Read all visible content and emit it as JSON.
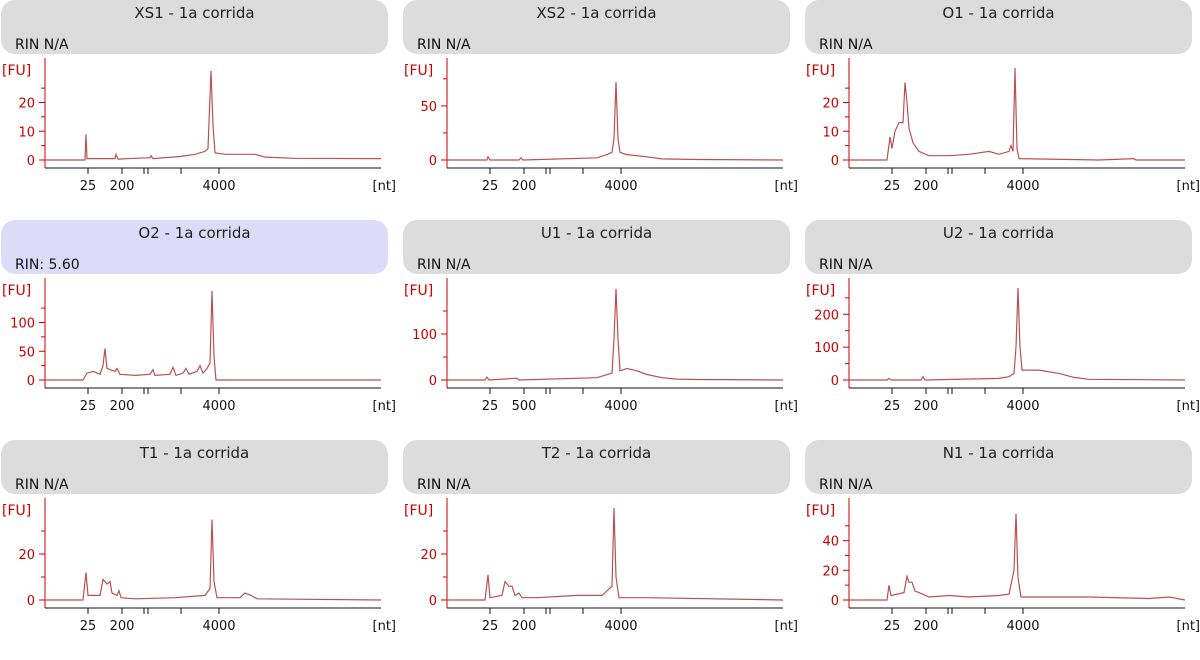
{
  "chart_data": [
    {
      "type": "line",
      "title": "XS1 - 1a corrida",
      "rin": "RIN N/A",
      "ylabel": "[FU]",
      "xlabel": "[nt]",
      "y_ticks": [
        "0",
        "10",
        "20"
      ],
      "ymax": 32,
      "x_ticks": [
        "25",
        "200",
        "4000"
      ],
      "highlight": false,
      "points": [
        [
          0,
          0
        ],
        [
          40,
          0
        ],
        [
          41,
          9
        ],
        [
          42,
          0.5
        ],
        [
          70,
          0.5
        ],
        [
          71,
          2
        ],
        [
          73,
          0.3
        ],
        [
          105,
          0.8
        ],
        [
          106,
          1.5
        ],
        [
          108,
          0.5
        ],
        [
          135,
          1.2
        ],
        [
          150,
          2
        ],
        [
          160,
          3
        ],
        [
          163,
          4
        ],
        [
          166,
          31
        ],
        [
          168,
          12
        ],
        [
          170,
          2.5
        ],
        [
          180,
          2
        ],
        [
          210,
          2
        ],
        [
          220,
          1
        ],
        [
          250,
          0.6
        ],
        [
          336,
          0.5
        ]
      ]
    },
    {
      "type": "line",
      "title": "XS2 - 1a corrida",
      "rin": "RIN N/A",
      "ylabel": "[FU]",
      "xlabel": "[nt]",
      "y_ticks": [
        "0",
        "50"
      ],
      "ymax": 85,
      "x_ticks": [
        "25",
        "200",
        "4000"
      ],
      "highlight": false,
      "points": [
        [
          0,
          0
        ],
        [
          40,
          0
        ],
        [
          41,
          3
        ],
        [
          43,
          0
        ],
        [
          72,
          0
        ],
        [
          74,
          2
        ],
        [
          76,
          0
        ],
        [
          150,
          2
        ],
        [
          160,
          5
        ],
        [
          165,
          7
        ],
        [
          167,
          20
        ],
        [
          169,
          72
        ],
        [
          171,
          20
        ],
        [
          173,
          7
        ],
        [
          180,
          5
        ],
        [
          200,
          3
        ],
        [
          215,
          1
        ],
        [
          250,
          0.5
        ],
        [
          336,
          0
        ]
      ]
    },
    {
      "type": "line",
      "title": "O1 - 1a corrida",
      "rin": "RIN N/A",
      "ylabel": "[FU]",
      "xlabel": "[nt]",
      "y_ticks": [
        "0",
        "10",
        "20"
      ],
      "ymax": 32,
      "x_ticks": [
        "25",
        "200",
        "4000"
      ],
      "highlight": false,
      "points": [
        [
          0,
          0
        ],
        [
          38,
          0
        ],
        [
          41,
          8
        ],
        [
          43,
          4
        ],
        [
          46,
          10
        ],
        [
          50,
          13
        ],
        [
          54,
          13
        ],
        [
          56,
          27
        ],
        [
          58,
          20
        ],
        [
          60,
          11
        ],
        [
          64,
          6
        ],
        [
          70,
          3
        ],
        [
          80,
          1.5
        ],
        [
          100,
          1.5
        ],
        [
          120,
          2
        ],
        [
          140,
          3
        ],
        [
          150,
          2
        ],
        [
          160,
          3
        ],
        [
          162,
          5
        ],
        [
          164,
          3
        ],
        [
          166,
          32
        ],
        [
          168,
          4
        ],
        [
          170,
          0.5
        ],
        [
          250,
          0
        ],
        [
          285,
          0.5
        ],
        [
          287,
          0
        ],
        [
          336,
          0
        ]
      ]
    },
    {
      "type": "line",
      "title": "O2 - 1a corrida",
      "rin": "RIN: 5.60",
      "ylabel": "[FU]",
      "xlabel": "[nt]",
      "y_ticks": [
        "0",
        "50",
        "100"
      ],
      "ymax": 160,
      "x_ticks": [
        "25",
        "200",
        "4000"
      ],
      "highlight": true,
      "points": [
        [
          0,
          0
        ],
        [
          38,
          0
        ],
        [
          42,
          12
        ],
        [
          48,
          15
        ],
        [
          55,
          10
        ],
        [
          58,
          25
        ],
        [
          60,
          55
        ],
        [
          62,
          20
        ],
        [
          70,
          15
        ],
        [
          72,
          20
        ],
        [
          75,
          10
        ],
        [
          90,
          8
        ],
        [
          105,
          10
        ],
        [
          108,
          18
        ],
        [
          110,
          8
        ],
        [
          125,
          10
        ],
        [
          128,
          22
        ],
        [
          131,
          8
        ],
        [
          138,
          12
        ],
        [
          141,
          20
        ],
        [
          144,
          10
        ],
        [
          152,
          15
        ],
        [
          155,
          25
        ],
        [
          158,
          12
        ],
        [
          162,
          20
        ],
        [
          165,
          30
        ],
        [
          167,
          155
        ],
        [
          169,
          40
        ],
        [
          171,
          0
        ],
        [
          336,
          0
        ]
      ]
    },
    {
      "type": "line",
      "title": "U1 - 1a corrida",
      "rin": "RIN N/A",
      "ylabel": "[FU]",
      "xlabel": "[nt]",
      "y_ticks": [
        "0",
        "100"
      ],
      "ymax": 200,
      "x_ticks": [
        "25",
        "500",
        "4000"
      ],
      "highlight": false,
      "points": [
        [
          0,
          0
        ],
        [
          38,
          0
        ],
        [
          40,
          6
        ],
        [
          42,
          0
        ],
        [
          70,
          4
        ],
        [
          72,
          0
        ],
        [
          150,
          5
        ],
        [
          165,
          15
        ],
        [
          167,
          90
        ],
        [
          169,
          198
        ],
        [
          171,
          90
        ],
        [
          173,
          20
        ],
        [
          180,
          25
        ],
        [
          190,
          20
        ],
        [
          200,
          12
        ],
        [
          215,
          5
        ],
        [
          230,
          2
        ],
        [
          250,
          1
        ],
        [
          336,
          0
        ]
      ]
    },
    {
      "type": "line",
      "title": "U2 - 1a corrida",
      "rin": "RIN N/A",
      "ylabel": "[FU]",
      "xlabel": "[nt]",
      "y_ticks": [
        "0",
        "100",
        "200"
      ],
      "ymax": 280,
      "x_ticks": [
        "25",
        "200",
        "4000"
      ],
      "highlight": false,
      "points": [
        [
          0,
          0
        ],
        [
          38,
          0
        ],
        [
          40,
          5
        ],
        [
          42,
          0
        ],
        [
          72,
          0
        ],
        [
          74,
          10
        ],
        [
          76,
          0
        ],
        [
          150,
          5
        ],
        [
          160,
          10
        ],
        [
          165,
          20
        ],
        [
          167,
          100
        ],
        [
          169,
          280
        ],
        [
          171,
          100
        ],
        [
          173,
          30
        ],
        [
          190,
          30
        ],
        [
          210,
          20
        ],
        [
          225,
          8
        ],
        [
          240,
          2
        ],
        [
          336,
          0
        ]
      ]
    },
    {
      "type": "line",
      "title": "T1 - 1a corrida",
      "rin": "RIN N/A",
      "ylabel": "[FU]",
      "xlabel": "[nt]",
      "y_ticks": [
        "0",
        "20"
      ],
      "ymax": 40,
      "x_ticks": [
        "25",
        "200",
        "4000"
      ],
      "highlight": false,
      "points": [
        [
          0,
          0
        ],
        [
          38,
          0
        ],
        [
          41,
          12
        ],
        [
          43,
          2
        ],
        [
          55,
          2
        ],
        [
          58,
          9
        ],
        [
          62,
          7
        ],
        [
          65,
          8
        ],
        [
          67,
          3
        ],
        [
          72,
          2
        ],
        [
          74,
          4
        ],
        [
          76,
          1
        ],
        [
          90,
          0.5
        ],
        [
          130,
          1
        ],
        [
          160,
          2
        ],
        [
          165,
          5
        ],
        [
          167,
          35
        ],
        [
          169,
          8
        ],
        [
          172,
          1
        ],
        [
          195,
          1
        ],
        [
          200,
          3
        ],
        [
          206,
          2
        ],
        [
          212,
          0.5
        ],
        [
          336,
          0
        ]
      ]
    },
    {
      "type": "line",
      "title": "T2 - 1a corrida",
      "rin": "RIN N/A",
      "ylabel": "[FU]",
      "xlabel": "[nt]",
      "y_ticks": [
        "0",
        "20"
      ],
      "ymax": 40,
      "x_ticks": [
        "25",
        "200",
        "4000"
      ],
      "highlight": false,
      "points": [
        [
          0,
          0
        ],
        [
          38,
          0
        ],
        [
          41,
          11
        ],
        [
          43,
          1
        ],
        [
          55,
          2
        ],
        [
          58,
          8
        ],
        [
          62,
          6
        ],
        [
          65,
          6
        ],
        [
          68,
          2
        ],
        [
          72,
          3
        ],
        [
          75,
          1
        ],
        [
          90,
          1
        ],
        [
          130,
          2
        ],
        [
          155,
          2
        ],
        [
          165,
          6
        ],
        [
          167,
          40
        ],
        [
          169,
          10
        ],
        [
          172,
          1
        ],
        [
          200,
          1
        ],
        [
          336,
          0
        ]
      ]
    },
    {
      "type": "line",
      "title": "N1 - 1a corrida",
      "rin": "RIN N/A",
      "ylabel": "[FU]",
      "xlabel": "[nt]",
      "y_ticks": [
        "0",
        "20",
        "40"
      ],
      "ymax": 62,
      "x_ticks": [
        "25",
        "200",
        "4000"
      ],
      "highlight": false,
      "points": [
        [
          0,
          0
        ],
        [
          38,
          0
        ],
        [
          40,
          10
        ],
        [
          42,
          3
        ],
        [
          55,
          5
        ],
        [
          58,
          16
        ],
        [
          60,
          12
        ],
        [
          63,
          12
        ],
        [
          66,
          6
        ],
        [
          70,
          5
        ],
        [
          80,
          2
        ],
        [
          100,
          3
        ],
        [
          120,
          2
        ],
        [
          150,
          3
        ],
        [
          160,
          4
        ],
        [
          165,
          20
        ],
        [
          167,
          58
        ],
        [
          169,
          15
        ],
        [
          172,
          2
        ],
        [
          200,
          2
        ],
        [
          240,
          2
        ],
        [
          300,
          1
        ],
        [
          320,
          2
        ],
        [
          336,
          0
        ]
      ]
    }
  ]
}
